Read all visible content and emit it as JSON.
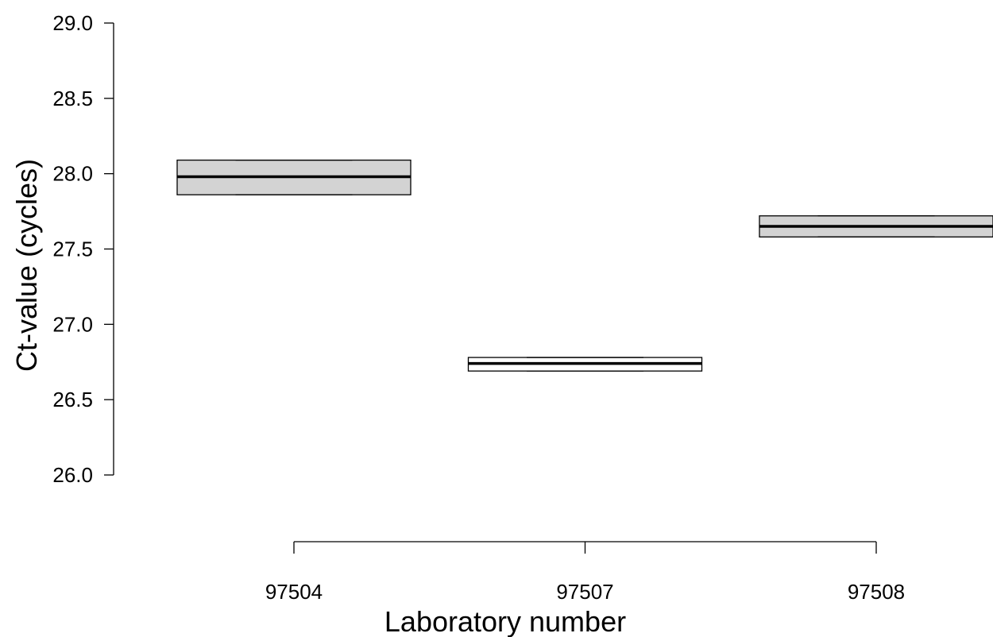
{
  "chart_data": {
    "type": "box",
    "xlabel": "Laboratory number",
    "ylabel": "Ct-value (cycles)",
    "ylim": [
      26.0,
      29.0
    ],
    "yticks": [
      "26.0",
      "26.5",
      "27.0",
      "27.5",
      "28.0",
      "28.5",
      "29.0"
    ],
    "categories": [
      "97504",
      "97507",
      "97508"
    ],
    "boxes": [
      {
        "label": "97504",
        "q1": 27.86,
        "median": 27.98,
        "q3": 28.09,
        "fill": "#d3d3d3"
      },
      {
        "label": "97507",
        "q1": 26.69,
        "median": 26.74,
        "q3": 26.78,
        "fill": "#ffffff"
      },
      {
        "label": "97508",
        "q1": 27.58,
        "median": 27.65,
        "q3": 27.72,
        "fill": "#d3d3d3"
      }
    ],
    "grid": false,
    "legend": "none"
  }
}
